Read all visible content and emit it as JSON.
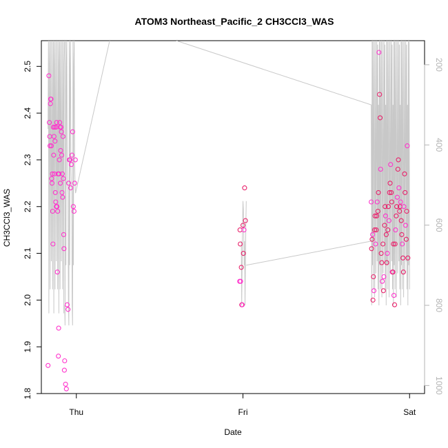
{
  "chart_data": {
    "type": "scatter",
    "title": "ATOM3 Northeast_Pacific_2 CH3CCl3_WAS",
    "xlabel": "Date",
    "ylabel": "CH3CCl3_WAS",
    "x_ticks": [
      {
        "x": 0.0,
        "label": "Thu"
      },
      {
        "x": 1.0,
        "label": "Fri"
      },
      {
        "x": 2.0,
        "label": "Sat"
      }
    ],
    "xlim": [
      -0.21,
      2.09
    ],
    "ylim": [
      1.8,
      2.555
    ],
    "y_ticks": [
      1.8,
      1.9,
      2.0,
      2.1,
      2.2,
      2.3,
      2.4,
      2.5
    ],
    "y2_label": "",
    "y2lim": [
      1020,
      140
    ],
    "y2_ticks": [
      200,
      400,
      600,
      800,
      1000
    ],
    "colors": {
      "series_a": "#ff33cc",
      "series_b": "#e8206a",
      "secondary_line": "#c8c8c8",
      "secondary_axis": "#b3b3b3"
    },
    "series": [
      {
        "values_xy": [
          [
            -0.17,
            1.86
          ],
          [
            -0.165,
            2.48
          ],
          [
            -0.162,
            2.38
          ],
          [
            -0.16,
            2.35
          ],
          [
            -0.158,
            2.33
          ],
          [
            -0.156,
            2.42
          ],
          [
            -0.154,
            2.43
          ],
          [
            -0.152,
            2.43
          ],
          [
            -0.15,
            2.33
          ],
          [
            -0.148,
            2.26
          ],
          [
            -0.146,
            2.25
          ],
          [
            -0.144,
            2.27
          ],
          [
            -0.142,
            2.19
          ],
          [
            -0.14,
            2.12
          ],
          [
            -0.138,
            2.37
          ],
          [
            -0.136,
            2.31
          ],
          [
            -0.134,
            2.35
          ],
          [
            -0.132,
            2.27
          ],
          [
            -0.13,
            2.37
          ],
          [
            -0.128,
            2.34
          ],
          [
            -0.126,
            2.23
          ],
          [
            -0.124,
            2.21
          ],
          [
            -0.122,
            2.37
          ],
          [
            -0.12,
            2.2
          ],
          [
            -0.118,
            2.38
          ],
          [
            -0.116,
            2.2
          ],
          [
            -0.114,
            2.06
          ],
          [
            -0.112,
            2.19
          ],
          [
            -0.11,
            2.27
          ],
          [
            -0.108,
            1.88
          ],
          [
            -0.106,
            1.94
          ],
          [
            -0.104,
            2.27
          ],
          [
            -0.102,
            2.3
          ],
          [
            -0.1,
            2.38
          ],
          [
            -0.098,
            2.37
          ],
          [
            -0.096,
            2.25
          ],
          [
            -0.094,
            2.32
          ],
          [
            -0.092,
            2.37
          ],
          [
            -0.09,
            2.36
          ],
          [
            -0.088,
            2.31
          ],
          [
            -0.086,
            2.23
          ],
          [
            -0.084,
            2.27
          ],
          [
            -0.082,
            2.22
          ],
          [
            -0.08,
            2.35
          ],
          [
            -0.078,
            2.26
          ],
          [
            -0.076,
            2.14
          ],
          [
            -0.074,
            2.11
          ],
          [
            -0.072,
            1.85
          ],
          [
            -0.07,
            1.87
          ],
          [
            -0.065,
            1.82
          ],
          [
            -0.06,
            1.81
          ],
          [
            -0.055,
            1.99
          ],
          [
            -0.05,
            1.98
          ],
          [
            -0.046,
            2.25
          ],
          [
            -0.042,
            2.3
          ],
          [
            -0.038,
            2.3
          ],
          [
            -0.034,
            2.24
          ],
          [
            -0.03,
            2.29
          ],
          [
            -0.026,
            2.31
          ],
          [
            -0.022,
            2.36
          ],
          [
            -0.018,
            2.2
          ],
          [
            -0.014,
            2.19
          ],
          [
            -0.01,
            2.25
          ],
          [
            -0.006,
            2.3
          ]
        ]
      },
      {
        "values_xy": [
          [
            0.98,
            2.04
          ],
          [
            0.982,
            2.15
          ],
          [
            0.984,
            2.12
          ],
          [
            0.986,
            2.04
          ],
          [
            0.99,
            2.07
          ],
          [
            0.993,
            1.99
          ],
          [
            0.996,
            1.99
          ],
          [
            1.0,
            2.16
          ],
          [
            1.003,
            2.1
          ],
          [
            1.006,
            2.15
          ],
          [
            1.01,
            2.24
          ],
          [
            1.015,
            2.17
          ]
        ]
      },
      {
        "values_xy": [
          [
            1.77,
            2.21
          ],
          [
            1.772,
            2.11
          ],
          [
            1.775,
            2.13
          ],
          [
            1.778,
            2.14
          ],
          [
            1.78,
            2.0
          ],
          [
            1.783,
            2.05
          ],
          [
            1.786,
            2.02
          ],
          [
            1.79,
            2.15
          ],
          [
            1.793,
            2.18
          ],
          [
            1.796,
            2.12
          ],
          [
            1.8,
            2.15
          ],
          [
            1.803,
            2.18
          ],
          [
            1.806,
            2.21
          ],
          [
            1.81,
            2.19
          ],
          [
            1.813,
            2.23
          ],
          [
            1.816,
            2.53
          ],
          [
            1.82,
            2.44
          ],
          [
            1.823,
            2.39
          ],
          [
            1.826,
            2.28
          ],
          [
            1.83,
            2.1
          ],
          [
            1.833,
            2.08
          ],
          [
            1.836,
            2.04
          ],
          [
            1.84,
            2.12
          ],
          [
            1.843,
            2.02
          ],
          [
            1.846,
            2.05
          ],
          [
            1.85,
            2.16
          ],
          [
            1.853,
            2.2
          ],
          [
            1.856,
            2.18
          ],
          [
            1.86,
            2.14
          ],
          [
            1.863,
            2.08
          ],
          [
            1.866,
            2.1
          ],
          [
            1.87,
            2.15
          ],
          [
            1.873,
            2.2
          ],
          [
            1.876,
            2.17
          ],
          [
            1.88,
            2.23
          ],
          [
            1.883,
            2.25
          ],
          [
            1.886,
            2.29
          ],
          [
            1.89,
            2.23
          ],
          [
            1.893,
            2.21
          ],
          [
            1.896,
            2.06
          ],
          [
            1.9,
            2.06
          ],
          [
            1.903,
            2.12
          ],
          [
            1.906,
            2.01
          ],
          [
            1.91,
            1.99
          ],
          [
            1.913,
            2.12
          ],
          [
            1.916,
            2.15
          ],
          [
            1.92,
            2.18
          ],
          [
            1.923,
            2.2
          ],
          [
            1.926,
            2.22
          ],
          [
            1.93,
            2.28
          ],
          [
            1.933,
            2.3
          ],
          [
            1.936,
            2.24
          ],
          [
            1.94,
            2.19
          ],
          [
            1.943,
            2.2
          ],
          [
            1.946,
            2.21
          ],
          [
            1.95,
            2.17
          ],
          [
            1.953,
            2.14
          ],
          [
            1.956,
            2.12
          ],
          [
            1.96,
            2.09
          ],
          [
            1.963,
            2.06
          ],
          [
            1.966,
            2.2
          ],
          [
            1.97,
            2.27
          ],
          [
            1.973,
            2.23
          ],
          [
            1.976,
            2.16
          ],
          [
            1.98,
            2.13
          ],
          [
            1.983,
            2.19
          ],
          [
            1.986,
            2.33
          ],
          [
            1.99,
            2.09
          ]
        ]
      }
    ]
  }
}
